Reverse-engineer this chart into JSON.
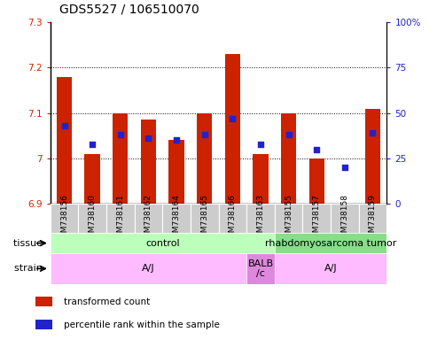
{
  "title": "GDS5527 / 106510070",
  "samples": [
    "GSM738156",
    "GSM738160",
    "GSM738161",
    "GSM738162",
    "GSM738164",
    "GSM738165",
    "GSM738166",
    "GSM738163",
    "GSM738155",
    "GSM738157",
    "GSM738158",
    "GSM738159"
  ],
  "bar_values": [
    7.18,
    7.01,
    7.1,
    7.085,
    7.04,
    7.1,
    7.23,
    7.01,
    7.1,
    7.0,
    6.895,
    7.11
  ],
  "bar_base": 6.9,
  "percentile_values": [
    43,
    33,
    38,
    36,
    35,
    38,
    47,
    33,
    38,
    30,
    20,
    39
  ],
  "ylim_left": [
    6.9,
    7.3
  ],
  "ylim_right": [
    0,
    100
  ],
  "yticks_left": [
    6.9,
    7.0,
    7.1,
    7.2,
    7.3
  ],
  "ytick_labels_left": [
    "6.9",
    "7",
    "7.1",
    "7.2",
    "7.3"
  ],
  "yticks_right": [
    0,
    25,
    50,
    75,
    100
  ],
  "ytick_labels_right": [
    "0",
    "25",
    "50",
    "75",
    "100%"
  ],
  "bar_color": "#cc2200",
  "dot_color": "#2222cc",
  "grid_dotted_at": [
    7.0,
    7.1,
    7.2
  ],
  "tissue_groups": [
    {
      "label": "control",
      "start": 0,
      "end": 8,
      "color": "#bbffbb"
    },
    {
      "label": "rhabdomyosarcoma tumor",
      "start": 8,
      "end": 12,
      "color": "#88dd88"
    }
  ],
  "strain_groups": [
    {
      "label": "A/J",
      "start": 0,
      "end": 7,
      "color": "#ffbbff"
    },
    {
      "label": "BALB\n/c",
      "start": 7,
      "end": 8,
      "color": "#dd88dd"
    },
    {
      "label": "A/J",
      "start": 8,
      "end": 12,
      "color": "#ffbbff"
    }
  ],
  "legend_items": [
    {
      "color": "#cc2200",
      "label": "transformed count"
    },
    {
      "color": "#2222cc",
      "label": "percentile rank within the sample"
    }
  ],
  "tissue_label": "tissue",
  "strain_label": "strain",
  "sample_box_color": "#cccccc",
  "title_fontsize": 10,
  "tick_fontsize": 7.5,
  "sample_fontsize": 6.5,
  "annotation_fontsize": 8,
  "legend_fontsize": 7.5
}
